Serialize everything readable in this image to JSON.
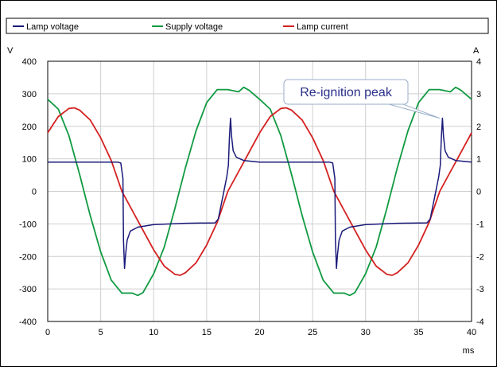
{
  "chart_data": {
    "type": "line",
    "title": "",
    "legend": {
      "placement": "top",
      "items": [
        "Lamp voltage",
        "Supply voltage",
        "Lamp current"
      ]
    },
    "x_axis": {
      "label": "ms",
      "range": [
        0,
        40
      ],
      "ticks": [
        0,
        5,
        10,
        15,
        20,
        25,
        30,
        35,
        40
      ],
      "tick_labels": [
        "0",
        "5",
        "10",
        "15",
        "20",
        "25",
        "30",
        "35",
        "40"
      ]
    },
    "y_axis_left": {
      "unit_label": "V",
      "range": [
        -400,
        400
      ],
      "ticks": [
        -400,
        -300,
        -200,
        -100,
        0,
        100,
        200,
        300,
        400
      ],
      "tick_labels": [
        "-400",
        "-300",
        "-200",
        "-100",
        "0",
        "100",
        "200",
        "300",
        "400"
      ]
    },
    "y_axis_right": {
      "unit_label": "A",
      "range": [
        -4,
        4
      ],
      "ticks": [
        -4,
        -3,
        -2,
        -1,
        0,
        1,
        2,
        3,
        4
      ],
      "tick_labels": [
        "-4",
        "-3",
        "-2",
        "-1",
        "0",
        "1",
        "2",
        "3",
        "4"
      ]
    },
    "grid": true,
    "annotation": {
      "text": "Re-ignition peak",
      "target": {
        "x": 37,
        "y": 225
      }
    },
    "series": [
      {
        "name": "Lamp voltage",
        "axis": "left",
        "color": "#1a1a7a",
        "points": [
          [
            0,
            90
          ],
          [
            6.6,
            90
          ],
          [
            6.9,
            87
          ],
          [
            7.1,
            40
          ],
          [
            7.15,
            -150
          ],
          [
            7.25,
            -237
          ],
          [
            7.35,
            -195
          ],
          [
            7.5,
            -150
          ],
          [
            7.8,
            -122
          ],
          [
            8.5,
            -110
          ],
          [
            10,
            -102
          ],
          [
            13,
            -98
          ],
          [
            15.8,
            -97
          ],
          [
            16.1,
            -85
          ],
          [
            16.5,
            -20
          ],
          [
            16.9,
            45
          ],
          [
            17.05,
            80
          ],
          [
            17.15,
            165
          ],
          [
            17.25,
            225
          ],
          [
            17.35,
            170
          ],
          [
            17.5,
            125
          ],
          [
            17.8,
            105
          ],
          [
            18.5,
            95
          ],
          [
            20,
            90
          ],
          [
            26.6,
            90
          ],
          [
            26.9,
            87
          ],
          [
            27.1,
            40
          ],
          [
            27.15,
            -150
          ],
          [
            27.25,
            -237
          ],
          [
            27.35,
            -195
          ],
          [
            27.5,
            -150
          ],
          [
            27.8,
            -122
          ],
          [
            28.5,
            -110
          ],
          [
            30,
            -102
          ],
          [
            33,
            -98
          ],
          [
            35.8,
            -97
          ],
          [
            36.1,
            -85
          ],
          [
            36.5,
            -20
          ],
          [
            36.9,
            45
          ],
          [
            37.05,
            80
          ],
          [
            37.15,
            165
          ],
          [
            37.25,
            225
          ],
          [
            37.35,
            170
          ],
          [
            37.5,
            125
          ],
          [
            37.8,
            105
          ],
          [
            38.5,
            95
          ],
          [
            40,
            90
          ]
        ]
      },
      {
        "name": "Supply voltage",
        "axis": "left",
        "color": "#119a41",
        "points": [
          [
            0,
            283
          ],
          [
            1,
            253
          ],
          [
            2,
            171
          ],
          [
            3,
            53
          ],
          [
            4,
            -73
          ],
          [
            5,
            -186
          ],
          [
            6,
            -273
          ],
          [
            7,
            -313
          ],
          [
            8,
            -313
          ],
          [
            8.5,
            -320
          ],
          [
            9,
            -311
          ],
          [
            10,
            -253
          ],
          [
            11,
            -171
          ],
          [
            12,
            -53
          ],
          [
            13,
            73
          ],
          [
            14,
            186
          ],
          [
            15,
            273
          ],
          [
            16,
            313
          ],
          [
            17,
            313
          ],
          [
            18,
            306
          ],
          [
            18.5,
            320
          ],
          [
            19,
            311
          ],
          [
            20,
            283
          ],
          [
            21,
            253
          ],
          [
            22,
            171
          ],
          [
            23,
            53
          ],
          [
            24,
            -73
          ],
          [
            25,
            -186
          ],
          [
            26,
            -273
          ],
          [
            27,
            -313
          ],
          [
            28,
            -313
          ],
          [
            28.5,
            -320
          ],
          [
            29,
            -311
          ],
          [
            30,
            -253
          ],
          [
            31,
            -171
          ],
          [
            32,
            -53
          ],
          [
            33,
            73
          ],
          [
            34,
            186
          ],
          [
            35,
            273
          ],
          [
            36,
            313
          ],
          [
            37,
            313
          ],
          [
            38,
            306
          ],
          [
            38.5,
            320
          ],
          [
            39,
            311
          ],
          [
            40,
            283
          ]
        ]
      },
      {
        "name": "Lamp current",
        "axis": "right",
        "color": "#d42020",
        "points": [
          [
            0,
            1.8
          ],
          [
            1,
            2.3
          ],
          [
            2,
            2.55
          ],
          [
            2.5,
            2.57
          ],
          [
            3,
            2.5
          ],
          [
            4,
            2.2
          ],
          [
            5,
            1.65
          ],
          [
            6,
            0.95
          ],
          [
            7,
            0.0
          ],
          [
            8,
            -0.6
          ],
          [
            9,
            -1.2
          ],
          [
            10,
            -1.8
          ],
          [
            11,
            -2.3
          ],
          [
            12,
            -2.55
          ],
          [
            12.5,
            -2.58
          ],
          [
            13,
            -2.5
          ],
          [
            14,
            -2.2
          ],
          [
            15,
            -1.65
          ],
          [
            16,
            -0.95
          ],
          [
            17,
            0.0
          ],
          [
            18,
            0.6
          ],
          [
            19,
            1.2
          ],
          [
            20,
            1.8
          ],
          [
            21,
            2.3
          ],
          [
            22,
            2.55
          ],
          [
            22.5,
            2.57
          ],
          [
            23,
            2.5
          ],
          [
            24,
            2.2
          ],
          [
            25,
            1.65
          ],
          [
            26,
            0.95
          ],
          [
            27,
            0.0
          ],
          [
            28,
            -0.6
          ],
          [
            29,
            -1.2
          ],
          [
            30,
            -1.8
          ],
          [
            31,
            -2.3
          ],
          [
            32,
            -2.55
          ],
          [
            32.5,
            -2.58
          ],
          [
            33,
            -2.5
          ],
          [
            34,
            -2.2
          ],
          [
            35,
            -1.65
          ],
          [
            36,
            -0.95
          ],
          [
            37,
            0.0
          ],
          [
            38,
            0.6
          ],
          [
            39,
            1.2
          ],
          [
            40,
            1.8
          ]
        ]
      }
    ]
  }
}
